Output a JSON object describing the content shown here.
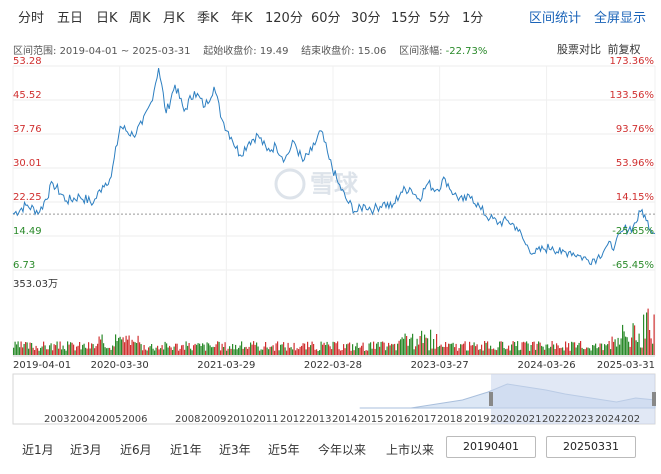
{
  "tabs": [
    "分时",
    "五日",
    "日K",
    "周K",
    "月K",
    "季K",
    "年K",
    "120分",
    "60分",
    "30分",
    "15分",
    "5分",
    "1分"
  ],
  "right_tabs": [
    "区间统计",
    "全屏显示"
  ],
  "info": {
    "range_label": "区间范围:",
    "range_value": "2019-04-01 ~ 2025-03-31",
    "start_label": "起始收盘价:",
    "start_value": "19.49",
    "end_label": "结束收盘价:",
    "end_value": "15.06",
    "change_label": "区间涨幅:",
    "change_value": "-22.73%"
  },
  "right_links": [
    "股票对比",
    "前复权"
  ],
  "watermark": "雪球",
  "colors": {
    "line": "#2d7fc1",
    "up": "#d03030",
    "down": "#2a8a2a",
    "accent": "#1a63b8"
  },
  "chart_data": {
    "type": "line",
    "title": "",
    "xlabel": "",
    "ylabel": "",
    "ylim": [
      6.73,
      53.28
    ],
    "y_ticks_left": [
      "53.28",
      "45.52",
      "37.76",
      "30.01",
      "22.25",
      "14.49",
      "6.73"
    ],
    "y_ticks_right": [
      "173.36%",
      "133.56%",
      "93.76%",
      "53.96%",
      "14.15%",
      "-25.65%",
      "-65.45%"
    ],
    "x_ticks": [
      "2019-04-01",
      "2020-03-30",
      "2021-03-29",
      "2022-03-28",
      "2023-03-27",
      "2024-03-26",
      "2025-03-31"
    ],
    "reference_close": 19.49,
    "series": [
      {
        "points": [
          [
            "2019-04-01",
            19.49
          ],
          [
            "2019-05-15",
            21.5
          ],
          [
            "2019-07-01",
            20.0
          ],
          [
            "2019-08-15",
            26.5
          ],
          [
            "2019-10-01",
            22.5
          ],
          [
            "2019-11-15",
            23.5
          ],
          [
            "2019-12-31",
            22.0
          ],
          [
            "2020-02-01",
            26.0
          ],
          [
            "2020-03-01",
            28.0
          ],
          [
            "2020-04-01",
            39.5
          ],
          [
            "2020-05-15",
            37.5
          ],
          [
            "2020-06-15",
            40.0
          ],
          [
            "2020-07-15",
            45.0
          ],
          [
            "2020-08-10",
            52.8
          ],
          [
            "2020-09-05",
            42.5
          ],
          [
            "2020-10-05",
            49.0
          ],
          [
            "2020-11-05",
            43.0
          ],
          [
            "2020-12-10",
            47.5
          ],
          [
            "2021-01-15",
            44.0
          ],
          [
            "2021-02-15",
            48.5
          ],
          [
            "2021-03-15",
            41.0
          ],
          [
            "2021-04-15",
            37.0
          ],
          [
            "2021-05-15",
            33.0
          ],
          [
            "2021-06-15",
            36.0
          ],
          [
            "2021-07-15",
            37.5
          ],
          [
            "2021-08-15",
            34.0
          ],
          [
            "2021-09-15",
            35.0
          ],
          [
            "2021-10-15",
            32.0
          ],
          [
            "2021-11-15",
            36.0
          ],
          [
            "2021-12-15",
            31.5
          ],
          [
            "2022-01-15",
            34.0
          ],
          [
            "2022-02-15",
            38.5
          ],
          [
            "2022-03-15",
            32.0
          ],
          [
            "2022-04-15",
            26.5
          ],
          [
            "2022-05-15",
            22.5
          ],
          [
            "2022-06-15",
            20.0
          ],
          [
            "2022-07-15",
            21.5
          ],
          [
            "2022-08-15",
            20.5
          ],
          [
            "2022-09-15",
            22.0
          ],
          [
            "2022-10-15",
            21.0
          ],
          [
            "2022-11-15",
            24.5
          ],
          [
            "2022-12-15",
            25.5
          ],
          [
            "2023-01-15",
            23.0
          ],
          [
            "2023-02-15",
            26.5
          ],
          [
            "2023-03-15",
            25.0
          ],
          [
            "2023-04-15",
            27.5
          ],
          [
            "2023-05-15",
            24.0
          ],
          [
            "2023-06-15",
            22.5
          ],
          [
            "2023-07-15",
            23.5
          ],
          [
            "2023-08-15",
            20.5
          ],
          [
            "2023-09-15",
            18.5
          ],
          [
            "2023-10-15",
            17.5
          ],
          [
            "2023-11-15",
            18.0
          ],
          [
            "2023-12-15",
            16.5
          ],
          [
            "2024-01-15",
            12.5
          ],
          [
            "2024-02-15",
            10.5
          ],
          [
            "2024-03-15",
            11.5
          ],
          [
            "2024-04-15",
            12.0
          ],
          [
            "2024-05-15",
            10.5
          ],
          [
            "2024-06-15",
            11.0
          ],
          [
            "2024-07-15",
            10.0
          ],
          [
            "2024-08-15",
            9.0
          ],
          [
            "2024-09-15",
            9.5
          ],
          [
            "2024-10-15",
            12.0
          ],
          [
            "2024-11-15",
            12.5
          ],
          [
            "2024-12-15",
            16.0
          ],
          [
            "2025-01-15",
            16.5
          ],
          [
            "2025-02-15",
            20.5
          ],
          [
            "2025-03-01",
            18.0
          ],
          [
            "2025-03-31",
            15.06
          ]
        ]
      }
    ],
    "volume_label": "353.03万",
    "volume_max": 353.03,
    "overview_years": [
      "2003",
      "2004",
      "2005",
      "2006",
      "2008",
      "2009",
      "2010",
      "2011",
      "2012",
      "2013",
      "2014",
      "2015",
      "2016",
      "2017",
      "2018",
      "2019",
      "2020",
      "2021",
      "2022",
      "2023",
      "2024",
      "202"
    ],
    "grid": true
  },
  "ranges": [
    "近1月",
    "近3月",
    "近6月",
    "近1年",
    "近3年",
    "近5年",
    "今年以来",
    "上市以来"
  ],
  "date_from": "20190401",
  "date_to": "20250331"
}
